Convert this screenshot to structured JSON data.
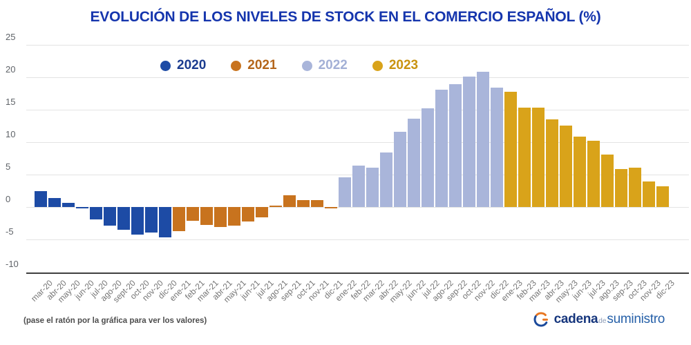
{
  "title": "EVOLUCIÓN DE LOS NIVELES DE STOCK EN EL COMERCIO ESPAÑOL (%)",
  "legend": {
    "items": [
      {
        "label": "2020",
        "color": "#1d4ba5",
        "text_color": "#1b3c8f"
      },
      {
        "label": "2021",
        "color": "#c8731e",
        "text_color": "#b4661b"
      },
      {
        "label": "2022",
        "color": "#a9b5da",
        "text_color": "#a3b0d6"
      },
      {
        "label": "2023",
        "color": "#d9a31a",
        "text_color": "#c9930f"
      }
    ]
  },
  "footer": {
    "hint": "(pase el ratón por la gráfica para ver los valores)",
    "logo": {
      "part1": "cadena",
      "part2": "de",
      "part3": "suministro"
    }
  },
  "chart_data": {
    "type": "bar",
    "title": "EVOLUCIÓN DE LOS NIVELES DE STOCK EN EL COMERCIO ESPAÑOL (%)",
    "xlabel": "",
    "ylabel": "",
    "ylim": [
      -10,
      25
    ],
    "y_ticks": [
      25,
      20,
      15,
      10,
      5,
      0,
      -5,
      -10
    ],
    "grid": true,
    "legend_position": "top",
    "categories": [
      "mar-20",
      "abr-20",
      "may-20",
      "jun-20",
      "jul-20",
      "ago-20",
      "sept-20",
      "oct-20",
      "nov-20",
      "dic-20",
      "ene-21",
      "feb-21",
      "mar-21",
      "abr-21",
      "may-21",
      "jun-21",
      "jul-21",
      "ago-21",
      "sep-21",
      "oct-21",
      "nov-21",
      "dic-21",
      "ene-22",
      "feb-22",
      "mar-22",
      "abr-22",
      "may-22",
      "jun-22",
      "jul-22",
      "ago-22",
      "sep-22",
      "oct-22",
      "nov-22",
      "dic-22",
      "ene-23",
      "feb-23",
      "mar-23",
      "abr-23",
      "may-23",
      "jun-23",
      "jul-23",
      "ago.23",
      "sep-23",
      "oct-23",
      "nov-23",
      "dic-23"
    ],
    "values": [
      2.4,
      1.4,
      0.6,
      -0.1,
      -1.9,
      -2.9,
      -3.5,
      -4.3,
      -3.9,
      -4.7,
      -3.7,
      -2.1,
      -2.8,
      -3.1,
      -2.9,
      -2.2,
      -1.6,
      0.2,
      1.8,
      1.1,
      1.1,
      -0.2,
      4.6,
      6.4,
      6.1,
      8.4,
      11.6,
      13.6,
      15.2,
      18.1,
      18.9,
      20.1,
      20.9,
      18.4,
      17.8,
      15.3,
      15.3,
      13.5,
      12.6,
      10.9,
      10.2,
      8.1,
      5.9,
      6.1,
      3.9,
      3.2
    ],
    "series_colors": {
      "2020": "#1d4ba5",
      "2021": "#c8731e",
      "2022": "#a9b5da",
      "2023": "#d9a31a"
    }
  }
}
